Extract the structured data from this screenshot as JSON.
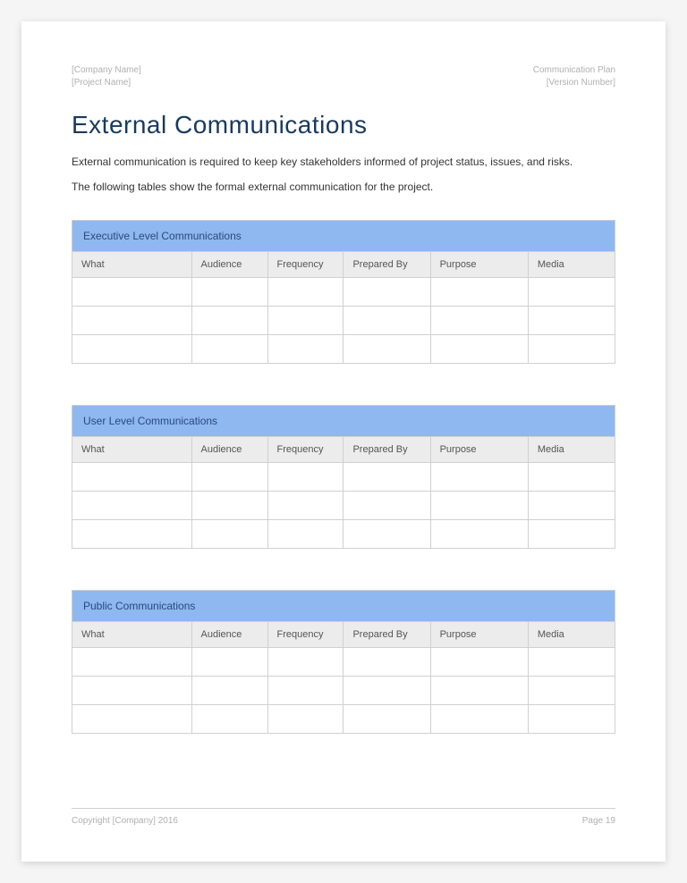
{
  "header": {
    "left_line1": "[Company Name]",
    "left_line2": "[Project Name]",
    "right_line1": "Communication Plan",
    "right_line2": "[Version Number]"
  },
  "title": "External Communications",
  "intro": {
    "p1": "External communication is required to keep key stakeholders informed of project status, issues, and risks.",
    "p2": "The following tables show the formal external communication for the project."
  },
  "tables": {
    "columns": [
      "What",
      "Audience",
      "Frequency",
      "Prepared By",
      "Purpose",
      "Media"
    ],
    "column_widths_pct": [
      22,
      14,
      14,
      16,
      18,
      16
    ],
    "row_count": 3,
    "sections": [
      {
        "title": "Executive Level Communications"
      },
      {
        "title": "User Level Communications"
      },
      {
        "title": "Public Communications"
      }
    ],
    "title_bg": "#8fb7f0",
    "title_text_color": "#2a4a7a",
    "header_bg": "#ececec",
    "border_color": "#d0d0d0",
    "cell_bg": "#ffffff"
  },
  "footer": {
    "left": "Copyright [Company] 2016",
    "right": "Page 19"
  },
  "colors": {
    "heading": "#1a3a5c",
    "body_text": "#333333",
    "meta_text": "#b0b0b0",
    "page_bg": "#ffffff",
    "outer_bg": "#f5f5f5"
  },
  "typography": {
    "heading_fontsize_pt": 21,
    "heading_weight": 300,
    "body_fontsize_pt": 9,
    "table_title_fontsize_pt": 9,
    "table_header_fontsize_pt": 8,
    "meta_fontsize_pt": 7.5,
    "font_family": "Helvetica Neue"
  }
}
